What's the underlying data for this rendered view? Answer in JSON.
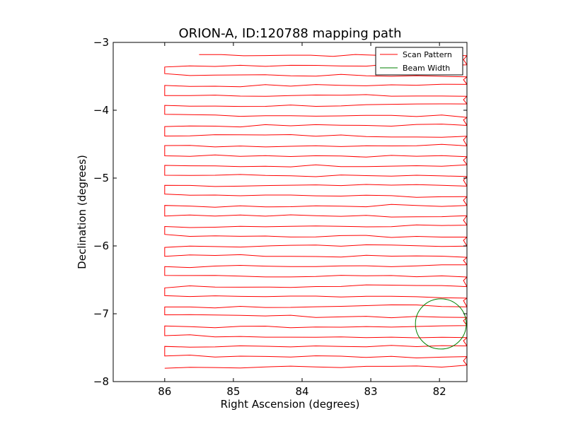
{
  "chart_data": {
    "type": "line",
    "title": "ORION-A, ID:120788 mapping path",
    "xlabel": "Right Ascension (degrees)",
    "ylabel": "Declination (degrees)",
    "xlim": [
      86.75,
      81.6
    ],
    "ylim": [
      -8,
      -3
    ],
    "x_inverted": true,
    "xticks": [
      86,
      85,
      84,
      83,
      82
    ],
    "xtick_labels": [
      "86",
      "85",
      "84",
      "83",
      "82"
    ],
    "yticks": [
      -3,
      -4,
      -5,
      -6,
      -7,
      -8
    ],
    "ytick_labels": [
      "−3",
      "−4",
      "−5",
      "−6",
      "−7",
      "−8"
    ],
    "grid": false,
    "legend": {
      "location": "top-right",
      "entries": [
        {
          "label": "Scan Pattern",
          "color": "#ff0000"
        },
        {
          "label": "Beam Width",
          "color": "#008000"
        }
      ]
    },
    "scan_pattern": {
      "name": "Scan Pattern",
      "color": "#ff0000",
      "ra_start": 86.0,
      "ra_end": 81.6,
      "ra_first_scan_start": 85.5,
      "dec_first": -3.18,
      "dec_last": -7.55,
      "scan_count": 32,
      "dec_step": 0.148
    },
    "beam": {
      "name": "Beam Width",
      "color": "#008000",
      "center_ra": 81.98,
      "center_dec": -7.15,
      "radius_deg": 0.37
    }
  }
}
